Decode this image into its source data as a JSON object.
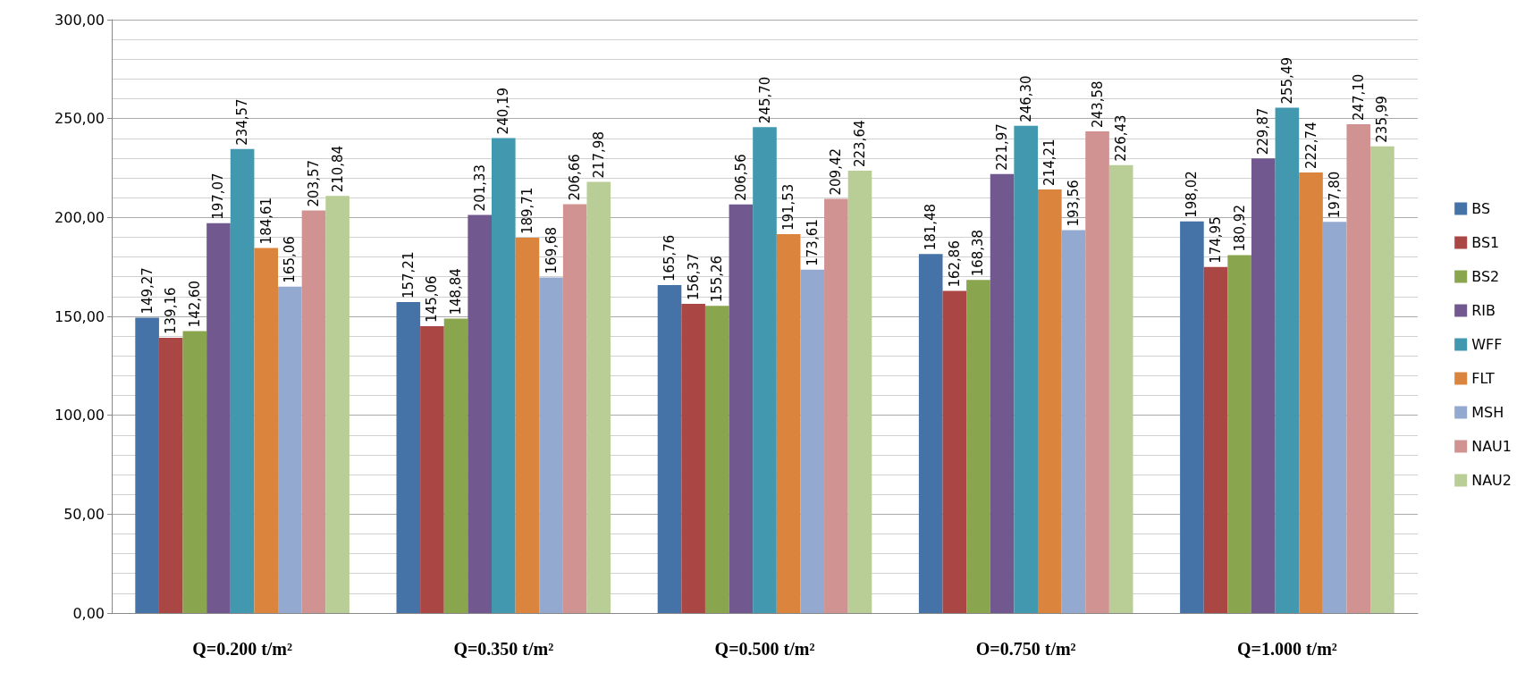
{
  "chart_data": {
    "type": "bar",
    "categories": [
      "Q=0.200 t/m²",
      "Q=0.350 t/m²",
      "Q=0.500 t/m²",
      "O=0.750 t/m²",
      "Q=1.000 t/m²"
    ],
    "series": [
      {
        "name": "BS",
        "color": "#4572a7",
        "values": [
          149.27,
          157.21,
          165.76,
          181.48,
          198.02
        ],
        "value_labels": [
          "149,27",
          "157,21",
          "165,76",
          "181,48",
          "198,02"
        ]
      },
      {
        "name": "BS1",
        "color": "#aa4643",
        "values": [
          139.16,
          145.06,
          156.37,
          162.86,
          174.95
        ],
        "value_labels": [
          "139,16",
          "145,06",
          "156,37",
          "162,86",
          "174,95"
        ]
      },
      {
        "name": "BS2",
        "color": "#89a54e",
        "values": [
          142.6,
          148.84,
          155.26,
          168.38,
          180.92
        ],
        "value_labels": [
          "142,60",
          "148,84",
          "155,26",
          "168,38",
          "180,92"
        ]
      },
      {
        "name": "RIB",
        "color": "#71588f",
        "values": [
          197.07,
          201.33,
          206.56,
          221.97,
          229.87
        ],
        "value_labels": [
          "197,07",
          "201,33",
          "206,56",
          "221,97",
          "229,87"
        ]
      },
      {
        "name": "WFF",
        "color": "#4198af",
        "values": [
          234.57,
          240.19,
          245.7,
          246.3,
          255.49
        ],
        "value_labels": [
          "234,57",
          "240,19",
          "245,70",
          "246,30",
          "255,49"
        ]
      },
      {
        "name": "FLT",
        "color": "#db843d",
        "values": [
          184.61,
          189.71,
          191.53,
          214.21,
          222.74
        ],
        "value_labels": [
          "184,61",
          "189,71",
          "191,53",
          "214,21",
          "222,74"
        ]
      },
      {
        "name": "MSH",
        "color": "#93a9cf",
        "values": [
          165.06,
          169.68,
          173.61,
          193.56,
          197.8
        ],
        "value_labels": [
          "165,06",
          "169,68",
          "173,61",
          "193,56",
          "197,80"
        ]
      },
      {
        "name": "NAU1",
        "color": "#d19392",
        "values": [
          203.57,
          206.66,
          209.42,
          243.58,
          247.1
        ],
        "value_labels": [
          "203,57",
          "206,66",
          "209,42",
          "243,58",
          "247,10"
        ]
      },
      {
        "name": "NAU2",
        "color": "#b9cd96",
        "values": [
          210.84,
          217.98,
          223.64,
          226.43,
          235.99
        ],
        "value_labels": [
          "210,84",
          "217,98",
          "223,64",
          "226,43",
          "235,99"
        ]
      }
    ],
    "ylim": [
      0,
      300
    ],
    "yticks": [
      {
        "value": 0,
        "label": "0,00"
      },
      {
        "value": 50,
        "label": "50,00"
      },
      {
        "value": 100,
        "label": "100,00"
      },
      {
        "value": 150,
        "label": "150,00"
      },
      {
        "value": 200,
        "label": "200,00"
      },
      {
        "value": 250,
        "label": "250,00"
      },
      {
        "value": 300,
        "label": "300,00"
      }
    ],
    "grid": true,
    "legend": "right"
  }
}
